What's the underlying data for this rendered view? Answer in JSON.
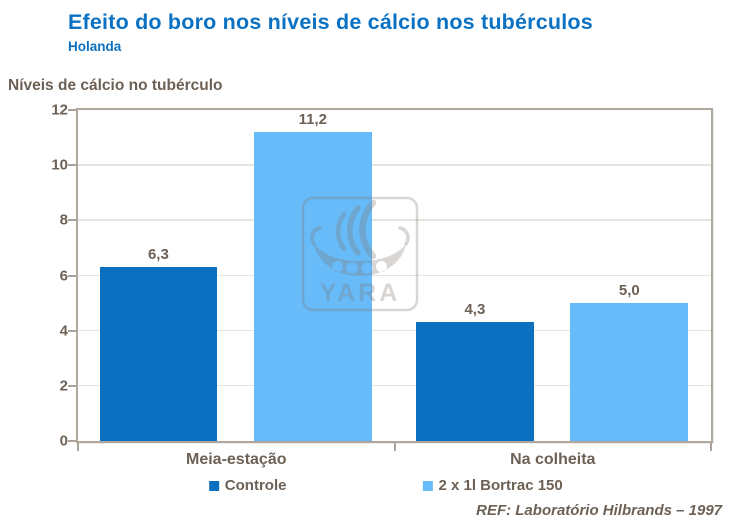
{
  "header": {
    "title": "Efeito do boro nos níveis de cálcio nos tubérculos",
    "subtitle": "Holanda"
  },
  "chart_data": {
    "type": "bar",
    "title": "Efeito do boro nos níveis de cálcio nos tubérculos",
    "ylabel": "Níveis de cálcio no tubérculo",
    "categories": [
      "Meia-estação",
      "Na colheita"
    ],
    "series": [
      {
        "name": "Controle",
        "color": "#0b70c0",
        "values": [
          6.3,
          4.3
        ],
        "labels": [
          "6,3",
          "4,3"
        ]
      },
      {
        "name": "2 x 1l Bortrac 150",
        "color": "#66bbf8",
        "values": [
          11.2,
          5.0
        ],
        "labels": [
          "11,2",
          "5,0"
        ]
      }
    ],
    "ylim": [
      0,
      12
    ],
    "yticks": [
      0,
      2,
      4,
      6,
      8,
      10,
      12
    ],
    "grid": "horizontal",
    "legend_position": "bottom"
  },
  "watermark": {
    "icon": "yara-viking-ship-logo",
    "text": "YARA"
  },
  "footer": {
    "ref": "REF: Laboratório Hilbrands – 1997"
  },
  "colors": {
    "title_blue": "#0b72c3",
    "text_taupe": "#6d6156",
    "bar_dark_blue": "#0b70c0",
    "bar_light_blue": "#66bbf8",
    "plot_border": "#b0a69b",
    "gridline": "#e6e4e1"
  }
}
